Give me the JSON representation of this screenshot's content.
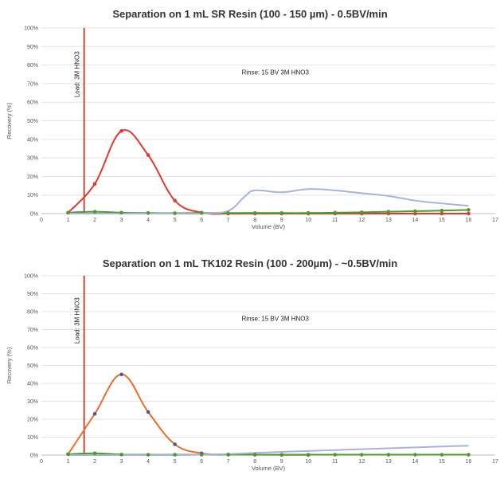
{
  "chart_data": [
    {
      "type": "line",
      "title": "Separation on 1 mL SR Resin (100 - 150 µm) - 0.5BV/min",
      "xlabel": "Volume (BV)",
      "ylabel": "Recovery (%)",
      "xlim": [
        0,
        17
      ],
      "ylim": [
        0,
        100
      ],
      "x_ticks": [
        "0",
        "1",
        "2",
        "3",
        "4",
        "5",
        "6",
        "7",
        "8",
        "9",
        "10",
        "11",
        "12",
        "13",
        "14",
        "15",
        "16",
        "17"
      ],
      "y_ticks": [
        "0%",
        "10%",
        "20%",
        "30%",
        "40%",
        "50%",
        "60%",
        "70%",
        "80%",
        "90%",
        "100%"
      ],
      "grid": true,
      "legend": "none",
      "annotations": [
        {
          "text": "Load: 3M HNO3",
          "x": 1.6,
          "y": 75,
          "vertical": true
        },
        {
          "text": "Rinse: 15 BV 3M HNO3",
          "x": 7.5,
          "y": 75
        }
      ],
      "vline": {
        "x": 1.6,
        "color": "#c0392b"
      },
      "series": [
        {
          "color": "#e03a2f",
          "markers": true,
          "x": [
            1,
            2,
            3,
            4,
            5,
            6,
            7,
            8,
            9,
            10,
            11,
            12,
            13,
            14,
            15,
            16
          ],
          "y": [
            0.5,
            16,
            44.5,
            31.5,
            7,
            0.5,
            0,
            0,
            0,
            0,
            0,
            0,
            0,
            0,
            0,
            0
          ]
        },
        {
          "color": "#4e9a2a",
          "markers": true,
          "x": [
            1,
            2,
            3,
            4,
            5,
            6,
            7,
            8,
            9,
            10,
            11,
            12,
            13,
            14,
            15,
            16
          ],
          "y": [
            0.5,
            1,
            0.5,
            0.3,
            0.2,
            0.3,
            0.3,
            0.3,
            0.3,
            0.3,
            0.5,
            0.7,
            1,
            1.3,
            1.6,
            2
          ]
        },
        {
          "color": "#a7b4dc",
          "markers": false,
          "x": [
            1,
            2,
            3,
            4,
            5,
            6,
            7,
            7.6,
            8,
            9,
            10,
            11,
            12,
            13,
            14,
            15,
            16
          ],
          "y": [
            0,
            0,
            0,
            0,
            0,
            0,
            1.5,
            9,
            12.5,
            11.5,
            13.2,
            12.5,
            11,
            9.5,
            7,
            5.5,
            4.2
          ]
        }
      ]
    },
    {
      "type": "line",
      "title": "Separation on 1 mL TK102 Resin (100 - 200µm) - ~0.5BV/min",
      "xlabel": "Volume (BV)",
      "ylabel": "Recovery (%)",
      "xlim": [
        0,
        17
      ],
      "ylim": [
        0,
        100
      ],
      "x_ticks": [
        "0",
        "1",
        "2",
        "3",
        "4",
        "5",
        "6",
        "7",
        "8",
        "9",
        "10",
        "11",
        "12",
        "13",
        "14",
        "15",
        "16",
        "17"
      ],
      "y_ticks": [
        "0%",
        "10%",
        "20%",
        "30%",
        "40%",
        "50%",
        "60%",
        "70%",
        "80%",
        "90%",
        "100%"
      ],
      "grid": true,
      "legend": "none",
      "annotations": [
        {
          "text": "Load: 3M HNO3",
          "x": 1.6,
          "y": 75,
          "vertical": true
        },
        {
          "text": "Rinse: 15 BV 3M HNO3",
          "x": 7.5,
          "y": 75
        }
      ],
      "vline": {
        "x": 1.6,
        "color": "#c0392b"
      },
      "series": [
        {
          "color": "#ee6b2a",
          "markers": true,
          "marker_color": "#4a5a8c",
          "x": [
            1,
            2,
            3,
            4,
            5,
            6,
            7,
            8,
            9,
            10
          ],
          "y": [
            0.5,
            23,
            45,
            24,
            6,
            1,
            0.3,
            0.2,
            0.1,
            0.1
          ]
        },
        {
          "color": "#4e9a2a",
          "markers": true,
          "x": [
            1,
            2,
            3,
            4,
            5,
            6,
            7,
            8,
            9,
            10,
            11,
            12,
            13,
            14,
            15,
            16
          ],
          "y": [
            0.5,
            1,
            0.3,
            0.2,
            0.2,
            0.2,
            0.2,
            0.2,
            0.2,
            0.2,
            0.2,
            0.2,
            0.2,
            0.2,
            0.2,
            0.2
          ]
        },
        {
          "color": "#a7b4dc",
          "markers": false,
          "x": [
            1,
            2,
            3,
            4,
            5,
            6,
            7,
            8,
            9,
            10,
            11,
            12,
            13,
            14,
            15,
            16
          ],
          "y": [
            0,
            0,
            0,
            0,
            0,
            0.2,
            0.6,
            1.2,
            1.8,
            2.3,
            2.8,
            3.3,
            3.8,
            4.3,
            4.8,
            5.2
          ]
        }
      ]
    }
  ]
}
